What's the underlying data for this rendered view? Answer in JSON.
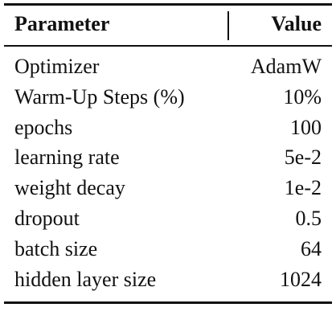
{
  "table": {
    "header": [
      "Parameter",
      "Value"
    ],
    "rows": [
      [
        "Optimizer",
        "AdamW"
      ],
      [
        "Warm-Up Steps (%)",
        "10%"
      ],
      [
        "epochs",
        "100"
      ],
      [
        "learning rate",
        "5e-2"
      ],
      [
        "weight decay",
        "1e-2"
      ],
      [
        "dropout",
        "0.5"
      ],
      [
        "batch size",
        "64"
      ],
      [
        "hidden layer size",
        "1024"
      ]
    ]
  }
}
